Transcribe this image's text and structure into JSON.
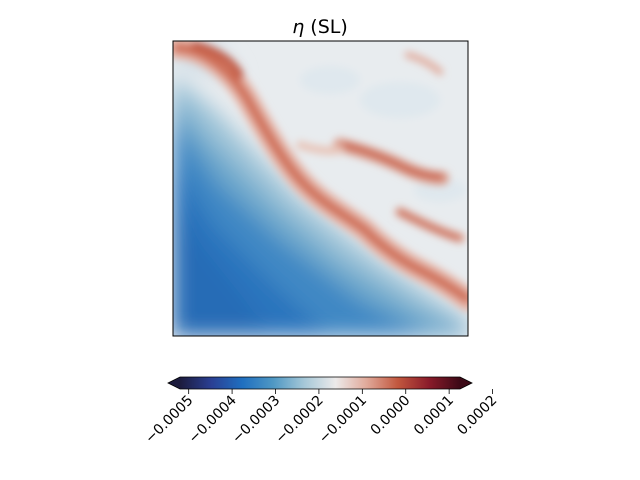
{
  "chart_data": {
    "type": "heatmap",
    "title_symbol": "η",
    "title_suffix": " (SL)",
    "colorbar": {
      "orientation": "horizontal",
      "min": -0.00052,
      "max": 0.000125,
      "extend": "both",
      "ticks": [
        {
          "value": -0.0005,
          "label": "−0.0005"
        },
        {
          "value": -0.0004,
          "label": "−0.0004"
        },
        {
          "value": -0.0003,
          "label": "−0.0003"
        },
        {
          "value": -0.0002,
          "label": "−0.0002"
        },
        {
          "value": -0.0001,
          "label": "−0.0001"
        },
        {
          "value": 0.0,
          "label": "0.0000"
        },
        {
          "value": 0.0001,
          "label": "0.0001"
        },
        {
          "value": 0.0002,
          "label": "0.0002"
        }
      ],
      "colormap": [
        "#1c1b3d",
        "#2a3f93",
        "#1f6fc0",
        "#4f98c4",
        "#a6c8d8",
        "#eceaea",
        "#e0a99a",
        "#c2573e",
        "#8a1b2a",
        "#3c0916"
      ]
    },
    "axes_ticks_visible": false,
    "grid": false
  }
}
